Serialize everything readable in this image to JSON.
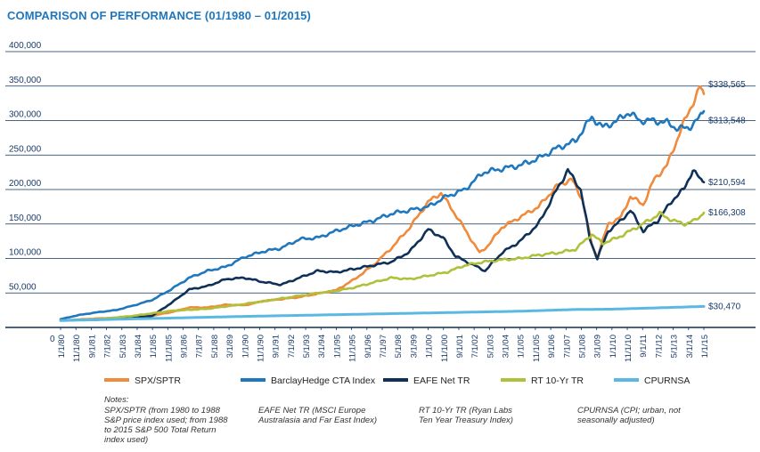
{
  "title": "COMPARISON OF PERFORMANCE (01/1980 – 01/2015)",
  "chart_data": {
    "type": "line",
    "title": "COMPARISON OF PERFORMANCE (01/1980 – 01/2015)",
    "xlabel": "",
    "ylabel": "",
    "x_range": [
      1980,
      2015
    ],
    "ylim": [
      0,
      400000
    ],
    "y_ticks": [
      "0",
      "50,000",
      "100,000",
      "150,000",
      "200,000",
      "250,000",
      "300,000",
      "350,000",
      "400,000"
    ],
    "y_tick_values": [
      0,
      50000,
      100000,
      150000,
      200000,
      250000,
      300000,
      350000,
      400000
    ],
    "x_tick_labels": [
      "1/1/80",
      "11/1/80",
      "9/1/81",
      "7/1/82",
      "5/1/83",
      "3/1/84",
      "1/1/85",
      "11/1/85",
      "9/1/86",
      "7/1/87",
      "5/1/88",
      "3/1/89",
      "1/1/90",
      "11/1/90",
      "9/1/91",
      "7/1/92",
      "5/1/93",
      "3/1/94",
      "1/1/95",
      "11/1/95",
      "9/1/96",
      "7/1/97",
      "5/1/98",
      "3/1/99",
      "1/1/00",
      "11/1/00",
      "9/1/01",
      "7/1/02",
      "5/1/03",
      "3/1/04",
      "1/1/05",
      "11/1/05",
      "9/1/06",
      "7/1/07",
      "5/1/08",
      "3/1/09",
      "1/1/10",
      "11/1/10",
      "9/1/11",
      "7/1/12",
      "5/1/13",
      "3/1/14",
      "1/1/15"
    ],
    "grid": true,
    "legend_position": "bottom",
    "end_labels": [
      "$338,565",
      "$313,548",
      "$210,594",
      "$166,308",
      "$30,470"
    ],
    "series": [
      {
        "name": "SPX/SPTR",
        "color": "#f08a3c",
        "points": [
          [
            1980,
            10000
          ],
          [
            1982,
            13000
          ],
          [
            1984,
            15000
          ],
          [
            1985,
            17000
          ],
          [
            1986,
            22000
          ],
          [
            1987,
            29000
          ],
          [
            1988,
            29000
          ],
          [
            1989,
            33000
          ],
          [
            1990,
            32000
          ],
          [
            1991,
            38000
          ],
          [
            1993,
            44000
          ],
          [
            1995,
            54000
          ],
          [
            1996,
            70000
          ],
          [
            1997,
            90000
          ],
          [
            1998,
            115000
          ],
          [
            1999,
            145000
          ],
          [
            2000,
            182000
          ],
          [
            2000.7,
            195000
          ],
          [
            2001.2,
            175000
          ],
          [
            2001.7,
            155000
          ],
          [
            2002.4,
            125000
          ],
          [
            2002.8,
            108000
          ],
          [
            2003.3,
            120000
          ],
          [
            2004,
            145000
          ],
          [
            2005,
            160000
          ],
          [
            2006,
            175000
          ],
          [
            2007,
            205000
          ],
          [
            2007.8,
            215000
          ],
          [
            2008.4,
            185000
          ],
          [
            2008.9,
            120000
          ],
          [
            2009.2,
            102000
          ],
          [
            2009.8,
            150000
          ],
          [
            2010.5,
            160000
          ],
          [
            2011,
            190000
          ],
          [
            2011.7,
            178000
          ],
          [
            2012.3,
            215000
          ],
          [
            2013,
            235000
          ],
          [
            2013.8,
            290000
          ],
          [
            2014.3,
            320000
          ],
          [
            2014.8,
            348000
          ],
          [
            2015,
            338565
          ]
        ]
      },
      {
        "name": "BarclayHedge CTA Index",
        "color": "#1f77bd",
        "points": [
          [
            1980,
            12000
          ],
          [
            1981,
            18000
          ],
          [
            1982,
            22000
          ],
          [
            1983,
            25000
          ],
          [
            1984,
            32000
          ],
          [
            1985,
            40000
          ],
          [
            1986,
            55000
          ],
          [
            1987,
            72000
          ],
          [
            1988,
            82000
          ],
          [
            1989,
            88000
          ],
          [
            1990,
            102000
          ],
          [
            1991,
            110000
          ],
          [
            1992,
            115000
          ],
          [
            1993,
            128000
          ],
          [
            1994,
            130000
          ],
          [
            1995,
            140000
          ],
          [
            1996,
            148000
          ],
          [
            1997,
            155000
          ],
          [
            1998,
            165000
          ],
          [
            1999,
            170000
          ],
          [
            2000,
            175000
          ],
          [
            2001,
            190000
          ],
          [
            2002,
            200000
          ],
          [
            2003,
            225000
          ],
          [
            2004,
            230000
          ],
          [
            2005,
            235000
          ],
          [
            2006,
            245000
          ],
          [
            2007,
            260000
          ],
          [
            2008,
            270000
          ],
          [
            2008.9,
            305000
          ],
          [
            2009.5,
            290000
          ],
          [
            2010.3,
            300000
          ],
          [
            2010.9,
            312000
          ],
          [
            2011.5,
            300000
          ],
          [
            2012.2,
            300000
          ],
          [
            2013,
            297000
          ],
          [
            2013.6,
            288000
          ],
          [
            2014.2,
            290000
          ],
          [
            2014.7,
            302000
          ],
          [
            2015,
            313548
          ]
        ]
      },
      {
        "name": "EAFE Net TR",
        "color": "#0f3057",
        "points": [
          [
            1980,
            10000
          ],
          [
            1981,
            11000
          ],
          [
            1982,
            11000
          ],
          [
            1983,
            13000
          ],
          [
            1984,
            14000
          ],
          [
            1985,
            17000
          ],
          [
            1986,
            35000
          ],
          [
            1987,
            55000
          ],
          [
            1988,
            60000
          ],
          [
            1989,
            70000
          ],
          [
            1990,
            72000
          ],
          [
            1991,
            66000
          ],
          [
            1992,
            62000
          ],
          [
            1993,
            72000
          ],
          [
            1994,
            82000
          ],
          [
            1995,
            80000
          ],
          [
            1996,
            85000
          ],
          [
            1997,
            90000
          ],
          [
            1998,
            95000
          ],
          [
            1999,
            110000
          ],
          [
            2000,
            142000
          ],
          [
            2000.8,
            130000
          ],
          [
            2001.5,
            103000
          ],
          [
            2002.5,
            90000
          ],
          [
            2003.1,
            82000
          ],
          [
            2004,
            108000
          ],
          [
            2005,
            125000
          ],
          [
            2006,
            150000
          ],
          [
            2007,
            200000
          ],
          [
            2007.6,
            228000
          ],
          [
            2008.3,
            200000
          ],
          [
            2008.8,
            128000
          ],
          [
            2009.2,
            100000
          ],
          [
            2009.8,
            140000
          ],
          [
            2010.5,
            155000
          ],
          [
            2011,
            170000
          ],
          [
            2011.7,
            140000
          ],
          [
            2012.5,
            155000
          ],
          [
            2013.3,
            185000
          ],
          [
            2013.9,
            200000
          ],
          [
            2014.4,
            228000
          ],
          [
            2014.8,
            215000
          ],
          [
            2015,
            210594
          ]
        ]
      },
      {
        "name": "RT 10-Yr TR",
        "color": "#afc13b",
        "points": [
          [
            1980,
            10000
          ],
          [
            1982,
            12000
          ],
          [
            1984,
            17000
          ],
          [
            1986,
            24000
          ],
          [
            1988,
            27000
          ],
          [
            1990,
            34000
          ],
          [
            1992,
            42000
          ],
          [
            1994,
            50000
          ],
          [
            1995,
            53000
          ],
          [
            1996,
            58000
          ],
          [
            1997,
            65000
          ],
          [
            1998,
            72000
          ],
          [
            1999,
            70000
          ],
          [
            2000,
            75000
          ],
          [
            2001,
            80000
          ],
          [
            2002,
            90000
          ],
          [
            2003,
            95000
          ],
          [
            2004,
            98000
          ],
          [
            2005,
            100000
          ],
          [
            2006,
            105000
          ],
          [
            2007,
            108000
          ],
          [
            2008,
            113000
          ],
          [
            2008.9,
            135000
          ],
          [
            2009.5,
            122000
          ],
          [
            2010.3,
            130000
          ],
          [
            2011,
            140000
          ],
          [
            2012,
            155000
          ],
          [
            2012.6,
            165000
          ],
          [
            2013.3,
            155000
          ],
          [
            2014,
            150000
          ],
          [
            2014.5,
            155000
          ],
          [
            2015,
            166308
          ]
        ]
      },
      {
        "name": "CPURNSA",
        "color": "#5ab8e2",
        "points": [
          [
            1980,
            10000
          ],
          [
            1985,
            13000
          ],
          [
            1990,
            16000
          ],
          [
            1995,
            18500
          ],
          [
            2000,
            21000
          ],
          [
            2005,
            23500
          ],
          [
            2008,
            26000
          ],
          [
            2010,
            26500
          ],
          [
            2012,
            28000
          ],
          [
            2015,
            30470
          ]
        ]
      }
    ]
  },
  "legend": [
    {
      "label": "SPX/SPTR",
      "color": "#f08a3c"
    },
    {
      "label": "BarclayHedge CTA Index",
      "color": "#1f77bd"
    },
    {
      "label": "EAFE Net TR",
      "color": "#0f3057"
    },
    {
      "label": "RT 10-Yr TR",
      "color": "#afc13b"
    },
    {
      "label": "CPURNSA",
      "color": "#5ab8e2"
    }
  ],
  "notes": {
    "heading": "Notes:",
    "items": [
      "SPX/SPTR (from 1980 to 1988\nS&P price index used; from 1988\nto 2015 S&P 500 Total Return\nindex used)",
      "EAFE Net TR (MSCI Europe\nAustralasia and Far East Index)",
      "RT 10-Yr TR (Ryan Labs\nTen Year Treasury Index)",
      "CPURNSA (CPI; urban, not\nseasonally adjusted)"
    ]
  }
}
